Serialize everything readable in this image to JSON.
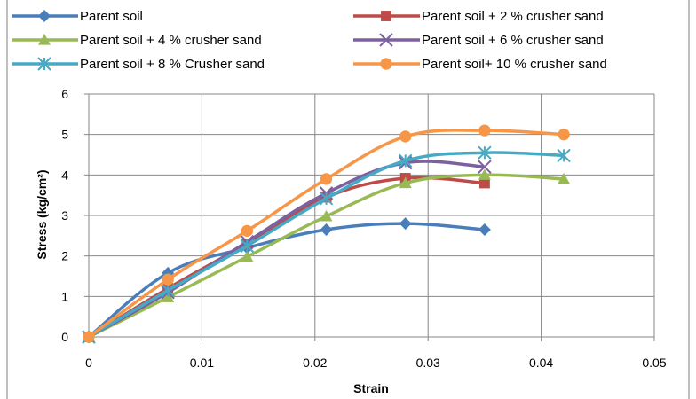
{
  "chart_data": {
    "type": "line",
    "title": "",
    "xlabel": "Strain",
    "ylabel": "Stress (kg/cm²)",
    "xlim": [
      0,
      0.05
    ],
    "ylim": [
      0,
      6
    ],
    "xticks": [
      "0",
      "0.01",
      "0.02",
      "0.03",
      "0.04",
      "0.05"
    ],
    "yticks": [
      "0",
      "1",
      "2",
      "3",
      "4",
      "5",
      "6"
    ],
    "grid": "vertical and horizontal",
    "legend_position": "top",
    "series": [
      {
        "name": "Parent soil",
        "color": "#4a7ebb",
        "marker": "diamond",
        "x": [
          0,
          0.007,
          0.014,
          0.021,
          0.028,
          0.035
        ],
        "y": [
          0,
          1.58,
          2.2,
          2.65,
          2.8,
          2.65
        ]
      },
      {
        "name": "Parent soil + 2 % crusher sand",
        "color": "#be4b48",
        "marker": "square",
        "x": [
          0,
          0.007,
          0.014,
          0.021,
          0.028,
          0.035
        ],
        "y": [
          0,
          1.2,
          2.3,
          3.45,
          3.92,
          3.8
        ]
      },
      {
        "name": "Parent soil + 4 % crusher sand",
        "color": "#98b954",
        "marker": "triangle",
        "x": [
          0,
          0.007,
          0.014,
          0.021,
          0.028,
          0.035,
          0.042
        ],
        "y": [
          0,
          0.98,
          1.98,
          2.98,
          3.8,
          4.0,
          3.9
        ]
      },
      {
        "name": "Parent soil + 6 % crusher sand",
        "color": "#7d60a0",
        "marker": "x",
        "x": [
          0,
          0.007,
          0.014,
          0.021,
          0.028,
          0.035
        ],
        "y": [
          0,
          1.1,
          2.35,
          3.55,
          4.3,
          4.2
        ]
      },
      {
        "name": "Parent soil + 8 % Crusher sand",
        "color": "#46aac5",
        "marker": "star",
        "x": [
          0,
          0.007,
          0.014,
          0.021,
          0.028,
          0.035,
          0.042
        ],
        "y": [
          0,
          1.15,
          2.25,
          3.42,
          4.35,
          4.55,
          4.48
        ]
      },
      {
        "name": "Parent soil+ 10 % crusher sand",
        "color": "#f79646",
        "marker": "circle",
        "x": [
          0,
          0.007,
          0.014,
          0.021,
          0.028,
          0.035,
          0.042
        ],
        "y": [
          0,
          1.42,
          2.62,
          3.9,
          4.95,
          5.1,
          5.0
        ]
      }
    ]
  }
}
